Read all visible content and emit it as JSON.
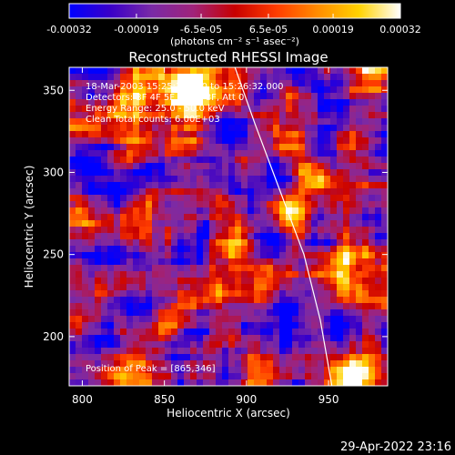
{
  "colorbar": {
    "stops": [
      "#0000ff",
      "#3a00c8",
      "#7a2aa6",
      "#a0237a",
      "#c80000",
      "#ff3c00",
      "#ff8c00",
      "#ffd200",
      "#ffffff"
    ],
    "tick_labels": [
      "-0.00032",
      "-0.00019",
      "-6.5e-05",
      "6.5e-05",
      "0.00019",
      "0.00032"
    ],
    "unit_label": "(photons cm⁻² s⁻¹ asec⁻²)"
  },
  "chart_data": {
    "type": "heatmap",
    "title": "Reconstructed RHESSI Image",
    "xlabel": "Heliocentric X (arcsec)",
    "ylabel": "Heliocentric Y (arcsec)",
    "xlim": [
      792,
      986
    ],
    "ylim": [
      170,
      364
    ],
    "x_ticks": [
      800,
      850,
      900,
      950
    ],
    "y_ticks": [
      200,
      250,
      300,
      350
    ],
    "colorbar_range": [
      -0.00032,
      0.00032
    ],
    "annotations": [
      "18-Mar-2003 15:25:32.000 to 15:26:32.000",
      "Detectors: 3F 4F 5F 6F 7F 8F, Att 0",
      "Energy Range: 25.0 - 50.0 keV",
      "Clean     Total counts: 6.00E+03"
    ],
    "peak_label": "Position of Peak = [865,346]",
    "peak": [
      865,
      346
    ],
    "limb": [
      [
        893,
        364
      ],
      [
        905,
        330
      ],
      [
        920,
        290
      ],
      [
        935,
        250
      ],
      [
        945,
        210
      ],
      [
        952,
        170
      ]
    ]
  },
  "timestamp": "29-Apr-2022 23:16"
}
